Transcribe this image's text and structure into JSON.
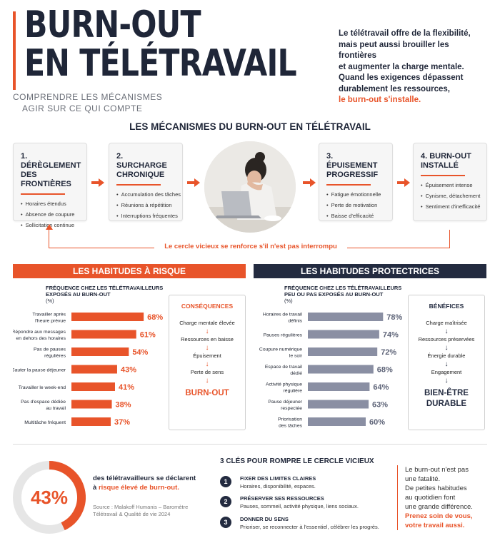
{
  "header": {
    "title_line1": "BURN-OUT",
    "title_line2": "EN TÉLÉTRAVAIL",
    "subtitle_line1": "COMPRENDRE LES MÉCANISMES",
    "subtitle_line2": "AGIR SUR CE QUI COMPTE",
    "intro_lines": [
      "Le télétravail offre de la flexibilité,",
      "mais peut aussi brouiller les frontières",
      "et augmenter la charge mentale.",
      "Quand les exigences dépassent",
      "durablement les ressources,"
    ],
    "intro_highlight": "le burn-out s'installe."
  },
  "mechanisms": {
    "title": "LES MÉCANISMES DU BURN-OUT EN TÉLÉTRAVAIL",
    "stages": [
      {
        "title_l1": "1. DÉRÈGLEMENT",
        "title_l2": "DES FRONTIÈRES",
        "items": [
          "Horaires étendus",
          "Absence de coupure",
          "Sollicitation continue"
        ]
      },
      {
        "title_l1": "2. SURCHARGE",
        "title_l2": "CHRONIQUE",
        "items": [
          "Accumulation des tâches",
          "Réunions à répétition",
          "Interruptions fréquentes"
        ]
      },
      {
        "title_l1": "3. ÉPUISEMENT",
        "title_l2": "PROGRESSIF",
        "items": [
          "Fatigue émotionnelle",
          "Perte de motivation",
          "Baisse d'efficacité"
        ]
      },
      {
        "title_l1": "4. BURN-OUT",
        "title_l2": "INSTALLÉ",
        "items": [
          "Épuisement intense",
          "Cynisme, détachement",
          "Sentiment d'inefficacité"
        ]
      }
    ],
    "cycle_text": "Le cercle vicieux se renforce s'il n'est pas interrompu"
  },
  "risk": {
    "banner": "LES HABITUDES À RISQUE",
    "chart_head_l1": "FRÉQUENCE CHEZ LES TÉLÉTRAVAILLEURS",
    "chart_head_l2": "EXPOSÉS AU BURN-OUT",
    "unit": "(%)",
    "box_title": "CONSÉQUENCES",
    "steps": [
      "Charge mentale élevée",
      "Ressources en baisse",
      "Épuisement",
      "Perte de sens"
    ],
    "final": "BURN-OUT"
  },
  "protect": {
    "banner": "LES HABITUDES PROTECTRICES",
    "chart_head_l1": "FRÉQUENCE CHEZ LES TÉLÉTRAVAILLEURS",
    "chart_head_l2": "PEU OU PAS EXPOSÉS AU BURN-OUT",
    "unit": "(%)",
    "box_title": "BÉNÉFICES",
    "steps": [
      "Charge maîtrisée",
      "Ressources préservées",
      "Énergie durable",
      "Engagement"
    ],
    "final_l1": "BIEN-ÊTRE",
    "final_l2": "DURABLE"
  },
  "chart_data": [
    {
      "type": "bar",
      "orientation": "horizontal",
      "title": "FRÉQUENCE CHEZ LES TÉLÉTRAVAILLEURS EXPOSÉS AU BURN-OUT",
      "unit": "%",
      "categories": [
        [
          "Travailler après",
          "l'heure prévue"
        ],
        [
          "Répondre aux messages",
          "en dehors des horaires"
        ],
        [
          "Pas de pauses",
          "régulières"
        ],
        [
          "Sauter la pause déjeuner"
        ],
        [
          "Travailler le week-end"
        ],
        [
          "Pas d'espace dédiée",
          "au travail"
        ],
        [
          "Multitâche fréquent"
        ]
      ],
      "values": [
        68,
        61,
        54,
        43,
        41,
        38,
        37
      ],
      "labels": [
        "68%",
        "61%",
        "54%",
        "43%",
        "41%",
        "38%",
        "37%"
      ],
      "color": "#e8542a"
    },
    {
      "type": "bar",
      "orientation": "horizontal",
      "title": "FRÉQUENCE CHEZ LES TÉLÉTRAVAILLEURS PEU OU PAS EXPOSÉS AU BURN-OUT",
      "unit": "%",
      "categories": [
        [
          "Horaires de travail",
          "définis"
        ],
        [
          "Pauses régulières"
        ],
        [
          "Coupure numérique",
          "le soir"
        ],
        [
          "Espace de travail",
          "dédié"
        ],
        [
          "Activité physique",
          "régulière"
        ],
        [
          "Pause déjeuner",
          "respectée"
        ],
        [
          "Priorisation",
          "des tâches"
        ]
      ],
      "values": [
        78,
        74,
        72,
        68,
        64,
        63,
        60
      ],
      "labels": [
        "78%",
        "74%",
        "72%",
        "68%",
        "64%",
        "63%",
        "60%"
      ],
      "color": "#8a8fa3"
    },
    {
      "type": "pie",
      "categories": [
        "risque élevé",
        "autres"
      ],
      "values": [
        43,
        57
      ],
      "labels": [
        "43%"
      ],
      "colors": [
        "#e8542a",
        "#e6e6e6"
      ]
    }
  ],
  "stat": {
    "value_label": "43%",
    "text_l1": "des télétravailleurs se déclarent",
    "text_pre": "à ",
    "text_hl": "risque élevé de burn-out.",
    "source_l1": "Source : Malakoff Humanis – Baromètre",
    "source_l2": "Télétravail & Qualité de vie 2024"
  },
  "keys": {
    "title": "3 CLÉS POUR ROMPRE LE CERCLE VICIEUX",
    "items": [
      {
        "num": "1",
        "title": "FIXER DES LIMITES CLAIRES",
        "desc": "Horaires, disponibilité, espaces."
      },
      {
        "num": "2",
        "title": "PRÉSERVER SES RESSOURCES",
        "desc": "Pauses, sommeil, activité physique, liens sociaux."
      },
      {
        "num": "3",
        "title": "DONNER DU SENS",
        "desc": "Prioriser, se reconnecter à l'essentiel, célébrer les progrès."
      }
    ]
  },
  "quote": {
    "lines": [
      "Le burn-out n'est pas",
      "une fatalité.",
      "De petites habitudes",
      "au quotidien font",
      "une grande différence."
    ],
    "hl_l1": "Prenez soin de vous,",
    "hl_l2": "votre travail aussi."
  },
  "colors": {
    "accent": "#e8542a",
    "navy": "#232b40",
    "bar_gray": "#8a8fa3"
  }
}
